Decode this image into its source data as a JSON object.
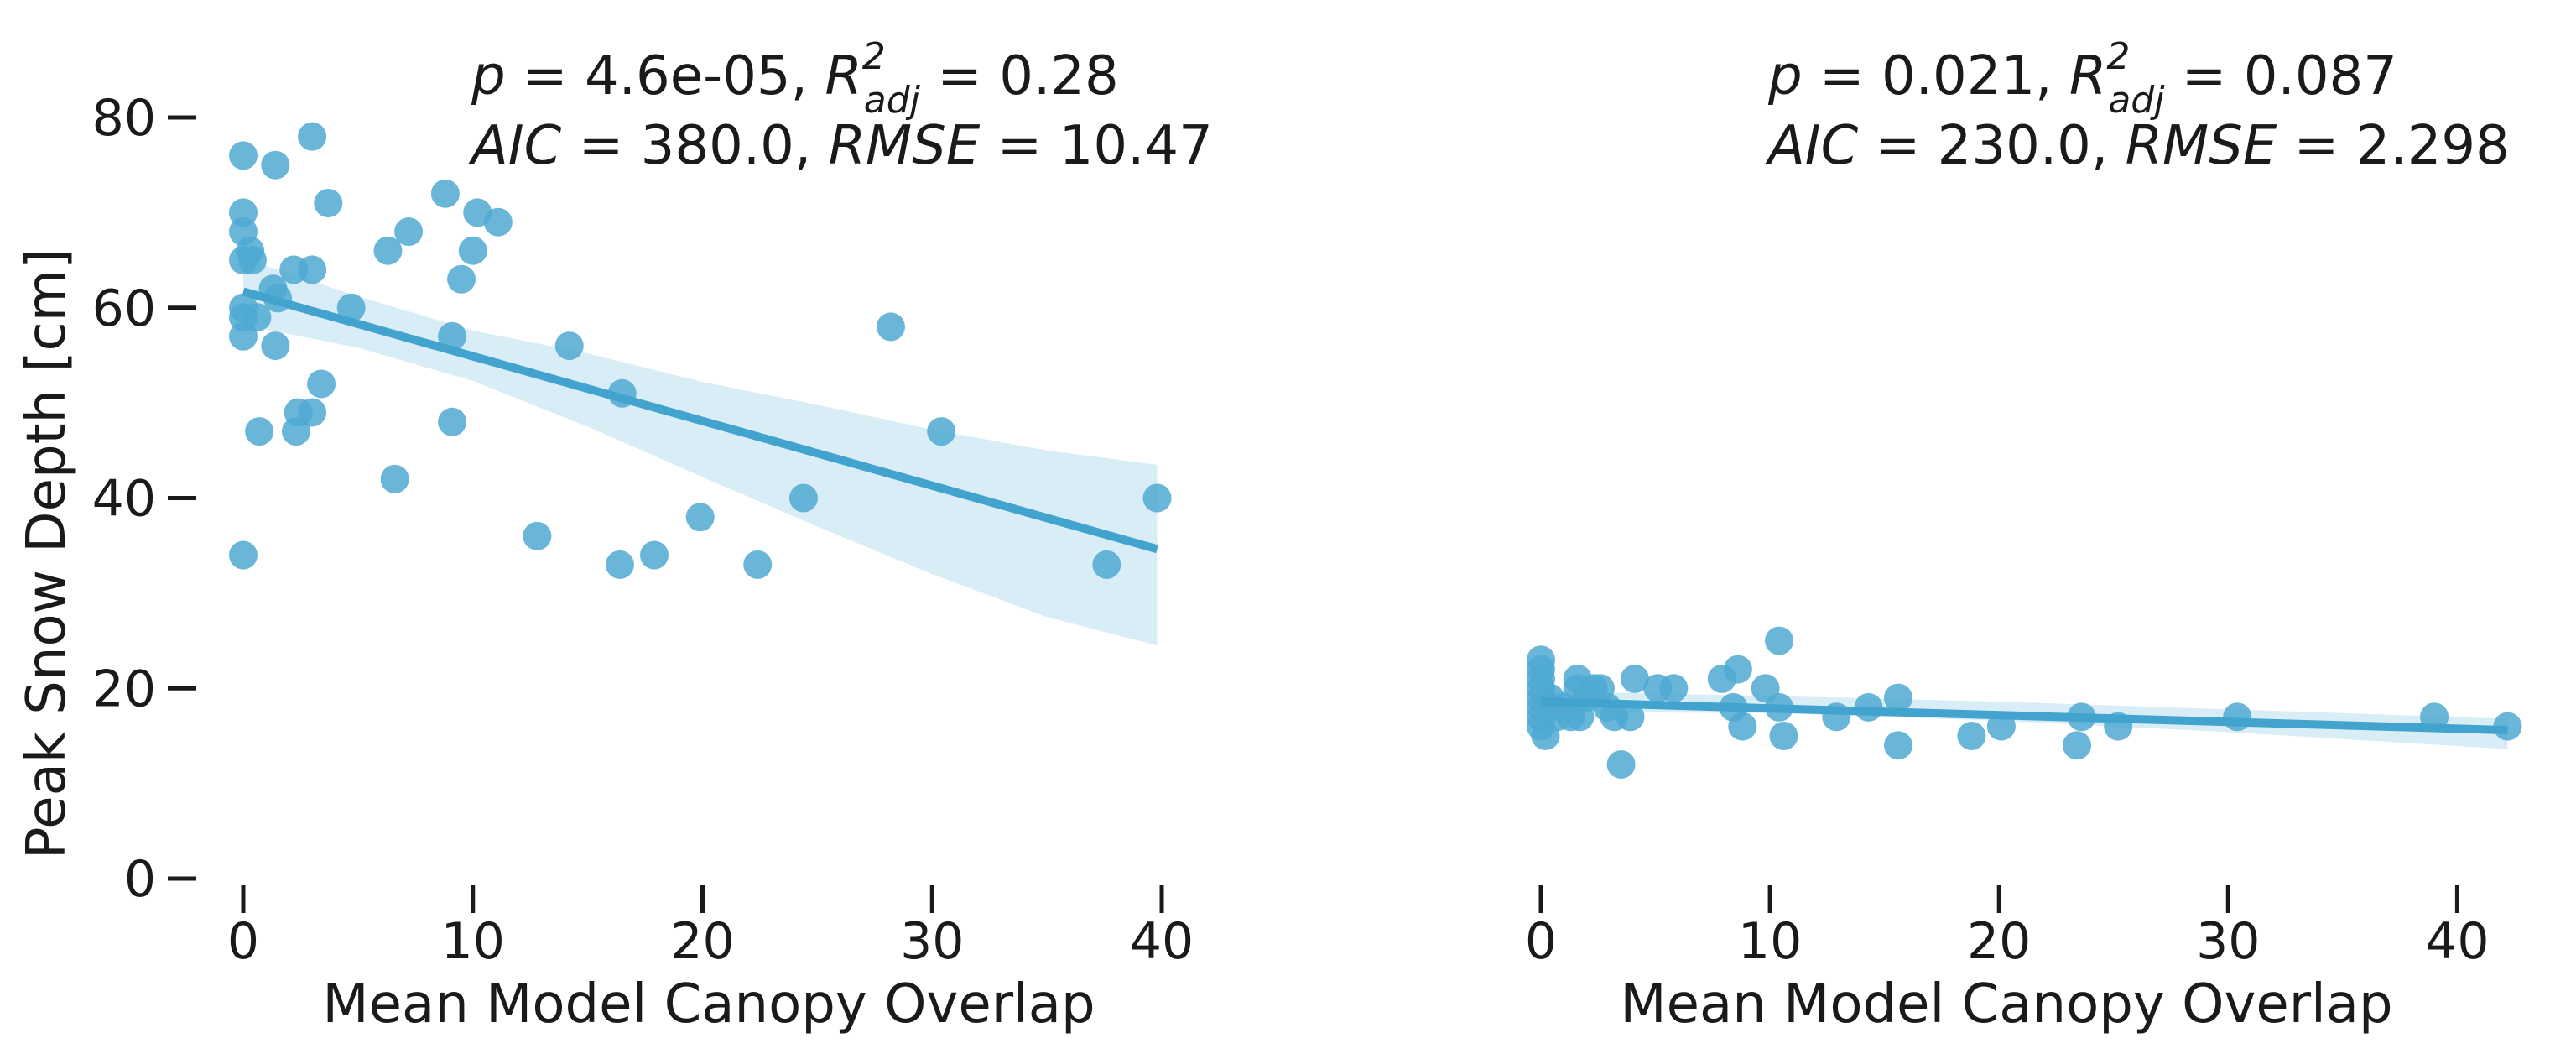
{
  "chart_data": [
    {
      "type": "scatter",
      "title": "",
      "xlabel": "Mean Model Canopy Overlap",
      "ylabel": "Peak Snow Depth [cm]",
      "xlim": [
        0,
        40
      ],
      "ylim": [
        0,
        80
      ],
      "xticks": [
        "0",
        "10",
        "20",
        "30",
        "40"
      ],
      "yticks": [
        "0",
        "20",
        "40",
        "60",
        "80"
      ],
      "stats": {
        "p_label": "p",
        "p_value": " = 4.6e-05, ",
        "r2_label": "R",
        "r2_sup": "2",
        "r2_sub": "adj",
        "r2_value": " = 0.28",
        "aic_label": "AIC",
        "aic_value": " = 380.0, ",
        "rmse_label": "RMSE",
        "rmse_value": " = 10.47"
      },
      "fit": {
        "intercept": 61.7,
        "slope": -0.68,
        "x_range": [
          0,
          39.8
        ]
      },
      "ci": {
        "x": [
          0,
          5,
          10,
          15,
          20,
          25,
          30,
          35,
          39.8
        ],
        "lower": [
          58.2,
          55.8,
          52.3,
          47.5,
          42.2,
          37.0,
          32.0,
          27.5,
          24.5
        ],
        "upper": [
          65.2,
          61.2,
          57.6,
          55.2,
          52.2,
          49.8,
          47.2,
          45.0,
          43.5
        ]
      },
      "points": [
        [
          0,
          76
        ],
        [
          0,
          70
        ],
        [
          0,
          68
        ],
        [
          0,
          65
        ],
        [
          0.3,
          66
        ],
        [
          0.4,
          65
        ],
        [
          0,
          60
        ],
        [
          0,
          59
        ],
        [
          0,
          57
        ],
        [
          0.6,
          59
        ],
        [
          0,
          34
        ],
        [
          0.7,
          47
        ],
        [
          1.4,
          75
        ],
        [
          1.3,
          62
        ],
        [
          1.5,
          61
        ],
        [
          1.4,
          56
        ],
        [
          2.2,
          64
        ],
        [
          2.4,
          49
        ],
        [
          2.3,
          47
        ],
        [
          3.0,
          78
        ],
        [
          3.0,
          64
        ],
        [
          3.0,
          49
        ],
        [
          3.4,
          52
        ],
        [
          3.7,
          71
        ],
        [
          4.7,
          60
        ],
        [
          6.3,
          66
        ],
        [
          6.6,
          42
        ],
        [
          7.2,
          68
        ],
        [
          8.8,
          72
        ],
        [
          9.1,
          57
        ],
        [
          9.1,
          48
        ],
        [
          9.5,
          63
        ],
        [
          10.0,
          66
        ],
        [
          10.2,
          70
        ],
        [
          11.1,
          69
        ],
        [
          12.8,
          36
        ],
        [
          14.2,
          56
        ],
        [
          16.4,
          33
        ],
        [
          16.5,
          51
        ],
        [
          17.9,
          34
        ],
        [
          19.9,
          38
        ],
        [
          22.4,
          33
        ],
        [
          24.4,
          40
        ],
        [
          28.2,
          58
        ],
        [
          30.4,
          47
        ],
        [
          37.6,
          33
        ],
        [
          39.8,
          40
        ]
      ]
    },
    {
      "type": "scatter",
      "title": "",
      "xlabel": "Mean Model Canopy Overlap",
      "ylabel": "",
      "xlim": [
        0,
        42
      ],
      "ylim": [
        0,
        80
      ],
      "xticks": [
        "0",
        "10",
        "20",
        "30",
        "40"
      ],
      "yticks": [],
      "stats": {
        "p_label": "p",
        "p_value": " = 0.021, ",
        "r2_label": "R",
        "r2_sup": "2",
        "r2_sub": "adj",
        "r2_value": " = 0.087",
        "aic_label": "AIC",
        "aic_value": " = 230.0, ",
        "rmse_label": "RMSE",
        "rmse_value": " = 2.298"
      },
      "fit": {
        "intercept": 18.6,
        "slope": -0.071,
        "x_range": [
          0,
          42.2
        ]
      },
      "ci": {
        "x": [
          0,
          10,
          20,
          30,
          42.2
        ],
        "lower": [
          17.5,
          17.4,
          16.6,
          15.4,
          13.6
        ],
        "upper": [
          19.7,
          19.2,
          18.6,
          17.8,
          16.8
        ]
      },
      "points": [
        [
          0,
          23
        ],
        [
          0,
          22
        ],
        [
          0,
          21
        ],
        [
          0,
          20
        ],
        [
          0,
          19
        ],
        [
          0,
          18
        ],
        [
          0,
          17
        ],
        [
          0,
          16
        ],
        [
          0.2,
          15
        ],
        [
          0.4,
          19
        ],
        [
          0.5,
          18
        ],
        [
          0.7,
          17
        ],
        [
          1.0,
          18
        ],
        [
          1.3,
          17
        ],
        [
          1.6,
          21
        ],
        [
          1.6,
          20
        ],
        [
          1.7,
          17
        ],
        [
          2.0,
          19
        ],
        [
          2.3,
          20
        ],
        [
          2.6,
          20
        ],
        [
          2.9,
          18
        ],
        [
          3.2,
          17
        ],
        [
          3.5,
          12
        ],
        [
          3.9,
          17
        ],
        [
          4.1,
          21
        ],
        [
          5.1,
          20
        ],
        [
          5.8,
          20
        ],
        [
          7.9,
          21
        ],
        [
          8.4,
          18
        ],
        [
          8.6,
          22
        ],
        [
          8.8,
          16
        ],
        [
          9.8,
          20
        ],
        [
          10.4,
          25
        ],
        [
          10.4,
          18
        ],
        [
          10.6,
          15
        ],
        [
          12.9,
          17
        ],
        [
          14.3,
          18
        ],
        [
          15.6,
          19
        ],
        [
          15.6,
          14
        ],
        [
          18.8,
          15
        ],
        [
          20.1,
          16
        ],
        [
          23.4,
          14
        ],
        [
          23.6,
          17
        ],
        [
          25.2,
          16
        ],
        [
          30.4,
          17
        ],
        [
          39.0,
          17
        ],
        [
          42.2,
          16
        ]
      ]
    }
  ],
  "colors": {
    "points": "#4fa9d2",
    "line": "#42a3cf",
    "band": "#c5e3f1",
    "text": "#1a1a1a"
  }
}
